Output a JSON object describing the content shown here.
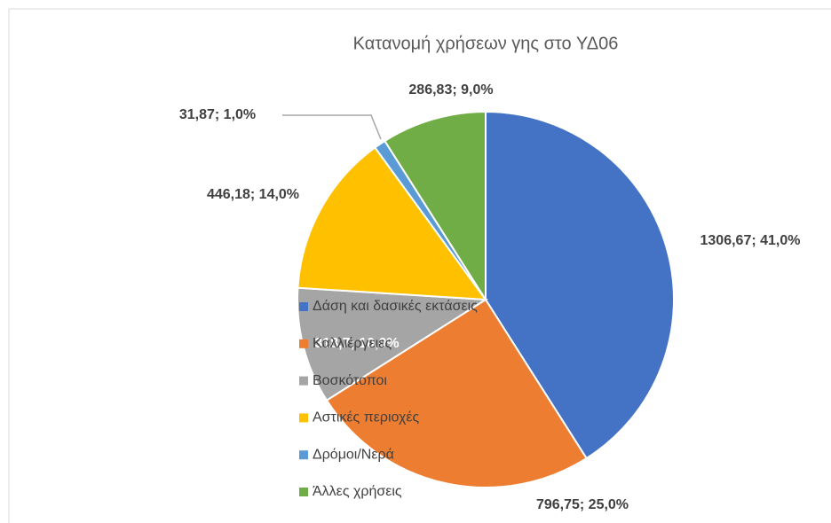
{
  "chart_data": {
    "type": "pie",
    "title": "Κατανομή χρήσεων γης στο ΥΔ06",
    "categories": [
      "Δάση και δασικές εκτάσεις",
      "Καλλιέργειες",
      "Βοσκότοποι",
      "Αστικές περιοχές",
      "Δρόμοι/Νερά",
      "Άλλες χρήσεις"
    ],
    "values": [
      1306.67,
      796.75,
      318.7,
      446.18,
      31.87,
      286.83
    ],
    "value_labels": [
      "1306,67; 41,0%",
      "796,75; 25,0%",
      "318,7; 10,0%",
      "446,18; 14,0%",
      "31,87; 1,0%",
      "286,83; 9,0%"
    ],
    "colors": [
      "#4472c4",
      "#ed7d31",
      "#a5a5a5",
      "#ffc000",
      "#5b9bd5",
      "#70ad47"
    ],
    "legend": "left"
  }
}
